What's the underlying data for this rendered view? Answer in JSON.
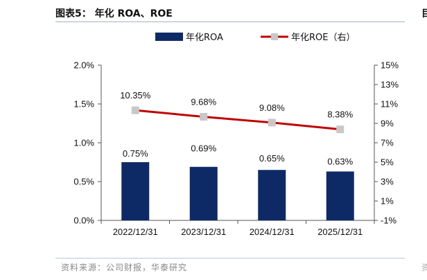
{
  "header": {
    "title": "图表5：  年化 ROA、ROE",
    "edge_glyph": "目"
  },
  "footer": {
    "source": "资料来源：公司财报，华泰研究",
    "edge_glyph": "资"
  },
  "colors": {
    "bar": "#0e2a66",
    "line": "#c00000",
    "marker": "#c8c8c8",
    "axis": "#555555"
  },
  "chart_data": {
    "type": "bar",
    "categories": [
      "2022/12/31",
      "2023/12/31",
      "2024/12/31",
      "2025/12/31"
    ],
    "series": [
      {
        "name": "年化ROA",
        "type": "bar",
        "axis": "left",
        "values": [
          0.75,
          0.69,
          0.65,
          0.63
        ],
        "labels": [
          "0.75%",
          "0.69%",
          "0.65%",
          "0.63%"
        ]
      },
      {
        "name": "年化ROE（右）",
        "type": "line",
        "axis": "right",
        "values": [
          10.35,
          9.68,
          9.08,
          8.38
        ],
        "labels": [
          "10.35%",
          "9.68%",
          "9.08%",
          "8.38%"
        ]
      }
    ],
    "left_axis": {
      "min": 0,
      "max": 2.0,
      "ticks": [
        0,
        0.5,
        1.0,
        1.5,
        2.0
      ],
      "tick_labels": [
        "0.0%",
        "0.5%",
        "1.0%",
        "1.5%",
        "2.0%"
      ]
    },
    "right_axis": {
      "min": -1,
      "max": 15,
      "ticks": [
        -1,
        1,
        3,
        5,
        7,
        9,
        11,
        13,
        15
      ],
      "tick_labels": [
        "-1%",
        "1%",
        "3%",
        "5%",
        "7%",
        "9%",
        "11%",
        "13%",
        "15%"
      ]
    },
    "legend_position": "top",
    "grid": false
  }
}
